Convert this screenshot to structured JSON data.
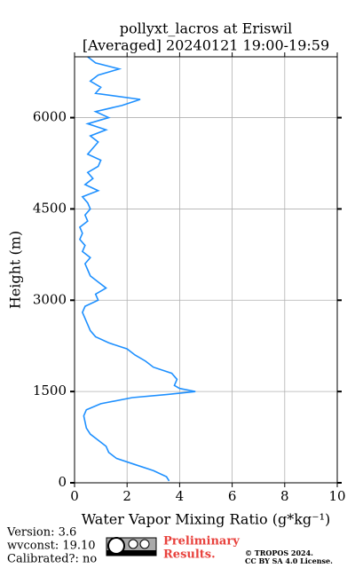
{
  "chart_data": {
    "type": "line",
    "title": [
      "pollyxt_lacros at Eriswil",
      "[Averaged] 20240121 19:00-19:59"
    ],
    "xlabel": "Water Vapor Mixing Ratio (g*kg⁻¹)",
    "ylabel": "Height (m)",
    "xlim": [
      0,
      10
    ],
    "xticks": [
      0,
      2,
      4,
      6,
      8,
      10
    ],
    "ylim": [
      0,
      7000
    ],
    "yticks": [
      0,
      1500,
      3000,
      4500,
      6000
    ],
    "grid": true,
    "series": [
      {
        "color": "#1e90ff",
        "y": [
          30,
          100,
          200,
          300,
          400,
          500,
          600,
          700,
          800,
          900,
          1000,
          1100,
          1200,
          1300,
          1400,
          1450,
          1500,
          1550,
          1600,
          1700,
          1800,
          1900,
          2000,
          2100,
          2200,
          2300,
          2400,
          2500,
          2600,
          2700,
          2800,
          2900,
          3000,
          3100,
          3200,
          3300,
          3400,
          3500,
          3600,
          3700,
          3800,
          3900,
          4000,
          4100,
          4200,
          4300,
          4400,
          4500,
          4600,
          4700,
          4800,
          4900,
          5000,
          5100,
          5200,
          5300,
          5400,
          5500,
          5600,
          5700,
          5800,
          5900,
          6000,
          6100,
          6200,
          6300,
          6400,
          6500,
          6600,
          6700,
          6800,
          6900,
          7000
        ],
        "x": [
          3.6,
          3.5,
          3.0,
          2.3,
          1.6,
          1.3,
          1.2,
          0.9,
          0.6,
          0.45,
          0.4,
          0.35,
          0.45,
          1.0,
          2.2,
          3.5,
          4.6,
          4.0,
          3.8,
          3.9,
          3.7,
          3.0,
          2.7,
          2.3,
          2.0,
          1.3,
          0.8,
          0.6,
          0.5,
          0.4,
          0.3,
          0.4,
          0.9,
          0.8,
          1.2,
          0.9,
          0.6,
          0.5,
          0.4,
          0.6,
          0.3,
          0.4,
          0.2,
          0.3,
          0.2,
          0.5,
          0.4,
          0.6,
          0.5,
          0.3,
          0.9,
          0.4,
          0.7,
          0.5,
          0.9,
          1.0,
          0.5,
          0.7,
          0.9,
          0.6,
          1.2,
          0.5,
          1.3,
          0.8,
          1.8,
          2.5,
          0.8,
          1.0,
          0.6,
          0.9,
          1.7,
          0.8,
          0.5
        ]
      }
    ]
  },
  "footer": {
    "version": "Version: 3.6",
    "wvconst": "wvconst:  19.10",
    "calibrated": "Calibrated?: no",
    "preliminary": [
      "Preliminary",
      "Results."
    ],
    "copyright": [
      "© TROPOS 2024.",
      "CC BY SA 4.0 License."
    ]
  }
}
